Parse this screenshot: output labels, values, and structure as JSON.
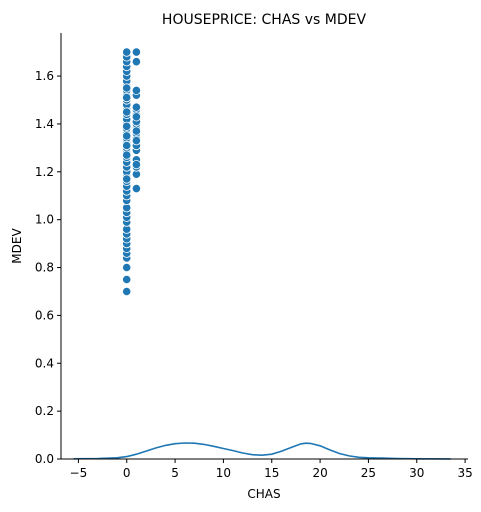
{
  "chart_data": {
    "type": "scatter",
    "title": "HOUSEPRICE: CHAS vs MDEV",
    "xlabel": "CHAS",
    "ylabel": "MDEV",
    "xlim": [
      -6.8,
      35.3
    ],
    "ylim": [
      0.0,
      1.78
    ],
    "xticks": [
      -5,
      0,
      5,
      10,
      15,
      20,
      25,
      30,
      35
    ],
    "yticks": [
      0.0,
      0.2,
      0.4,
      0.6,
      0.8,
      1.0,
      1.2,
      1.4,
      1.6
    ],
    "grid": false,
    "legend": "none",
    "spines": "left-bottom",
    "colors": {
      "series": "#1f77b4",
      "marker_edge": "#ffffff",
      "axis": "#000000"
    },
    "series": [
      {
        "kind": "scatter",
        "x": [
          0,
          0,
          0,
          0,
          0,
          0,
          0,
          0,
          0,
          0,
          0,
          0,
          0,
          0,
          0,
          0,
          0,
          0,
          0,
          0,
          0,
          0,
          0,
          0,
          0,
          0,
          0,
          0,
          0,
          0,
          0,
          0,
          0,
          0,
          0,
          0,
          0,
          0,
          0,
          0,
          0,
          0,
          0,
          0,
          0,
          0,
          0,
          0,
          0,
          0,
          0,
          0,
          0,
          0,
          1,
          1,
          1,
          1,
          1,
          1,
          1,
          1,
          1,
          1,
          1,
          1,
          1,
          1,
          1,
          1,
          1,
          1,
          1,
          1,
          1,
          1,
          1
        ],
        "y": [
          0.7,
          0.75,
          0.8,
          0.84,
          0.86,
          0.88,
          0.9,
          0.92,
          0.94,
          0.96,
          0.99,
          1.01,
          1.03,
          1.05,
          1.08,
          1.1,
          1.12,
          1.14,
          1.16,
          1.18,
          1.2,
          1.22,
          1.24,
          1.26,
          1.28,
          1.3,
          1.32,
          1.34,
          1.36,
          1.38,
          1.4,
          1.42,
          1.44,
          1.46,
          1.48,
          1.5,
          1.52,
          1.54,
          1.56,
          1.58,
          1.6,
          1.62,
          1.64,
          1.66,
          1.68,
          1.7,
          1.17,
          1.27,
          1.31,
          1.35,
          1.39,
          1.45,
          1.51,
          1.55,
          1.13,
          1.19,
          1.22,
          1.25,
          1.29,
          1.31,
          1.34,
          1.36,
          1.38,
          1.4,
          1.42,
          1.44,
          1.46,
          1.52,
          1.54,
          1.66,
          1.7,
          1.23,
          1.33,
          1.37,
          1.41,
          1.43,
          1.47
        ]
      },
      {
        "kind": "line",
        "x": [
          -5.5,
          -3,
          -1,
          0,
          1,
          2,
          3,
          4,
          5,
          6,
          7,
          8,
          9,
          10,
          11,
          12,
          13,
          14,
          15,
          16,
          17,
          18,
          18.5,
          19,
          20,
          21,
          22,
          23,
          24,
          25,
          26,
          28,
          30,
          33.5
        ],
        "y": [
          0.001,
          0.002,
          0.005,
          0.01,
          0.02,
          0.033,
          0.046,
          0.057,
          0.064,
          0.067,
          0.066,
          0.061,
          0.053,
          0.044,
          0.035,
          0.025,
          0.018,
          0.016,
          0.02,
          0.032,
          0.048,
          0.063,
          0.066,
          0.065,
          0.055,
          0.038,
          0.023,
          0.013,
          0.007,
          0.005,
          0.004,
          0.002,
          0.001,
          0.0005
        ]
      }
    ]
  }
}
